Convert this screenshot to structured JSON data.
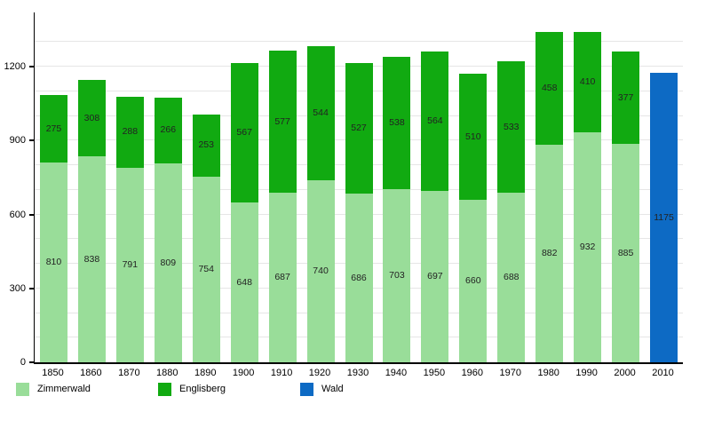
{
  "chart_data": {
    "type": "bar",
    "stacked": true,
    "title": "",
    "xlabel": "",
    "ylabel": "",
    "categories": [
      "1850",
      "1860",
      "1870",
      "1880",
      "1890",
      "1900",
      "1910",
      "1920",
      "1930",
      "1940",
      "1950",
      "1960",
      "1970",
      "1980",
      "1990",
      "2000",
      "2010"
    ],
    "series": [
      {
        "name": "Zimmerwald",
        "color": "#99dd99",
        "values": [
          810,
          838,
          791,
          809,
          754,
          648,
          687,
          740,
          686,
          703,
          697,
          660,
          688,
          882,
          932,
          885,
          null
        ]
      },
      {
        "name": "Englisberg",
        "color": "#11aa11",
        "values": [
          275,
          308,
          288,
          266,
          253,
          567,
          577,
          544,
          527,
          538,
          564,
          510,
          533,
          458,
          410,
          377,
          null
        ]
      },
      {
        "name": "Wald",
        "color": "#0d6ac4",
        "values": [
          null,
          null,
          null,
          null,
          null,
          null,
          null,
          null,
          null,
          null,
          null,
          null,
          null,
          null,
          null,
          null,
          1175
        ]
      }
    ],
    "y_ticks": [
      0,
      300,
      600,
      900,
      1200
    ],
    "ylim": [
      0,
      1420
    ],
    "grid_interval": 100,
    "grid": true,
    "legend_position": "bottom",
    "colors": {
      "gridline": "#e6e6e6",
      "axis": "#000000",
      "value_label": "#222222"
    }
  }
}
